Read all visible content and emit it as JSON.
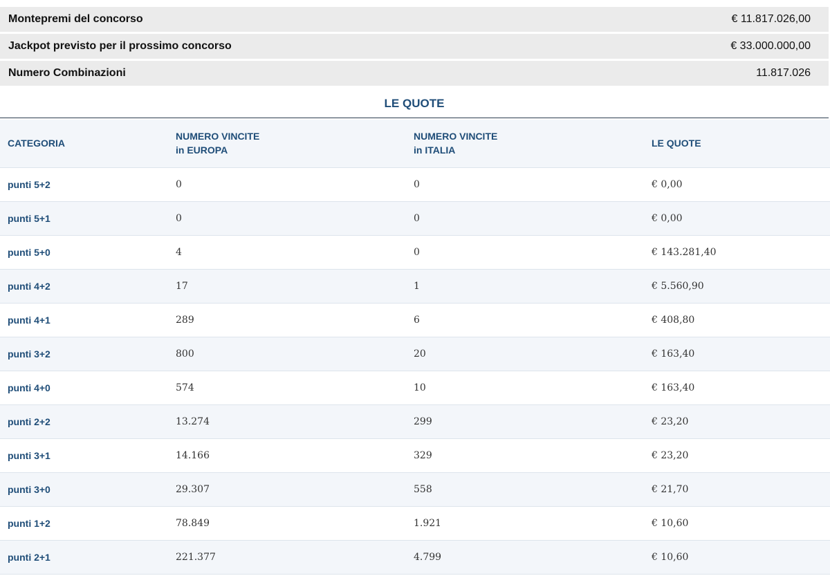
{
  "summary": [
    {
      "label": "Montepremi del concorso",
      "value": "€ 11.817.026,00"
    },
    {
      "label": "Jackpot previsto per il prossimo concorso",
      "value": "€ 33.000.000,00"
    },
    {
      "label": "Numero Combinazioni",
      "value": "11.817.026"
    }
  ],
  "section_title": "LE QUOTE",
  "table": {
    "headers": [
      {
        "line1": "CATEGORIA",
        "line2": ""
      },
      {
        "line1": "NUMERO VINCITE",
        "line2": "in EUROPA"
      },
      {
        "line1": "NUMERO VINCITE",
        "line2": "in ITALIA"
      },
      {
        "line1": "LE QUOTE",
        "line2": ""
      }
    ],
    "rows": [
      {
        "categoria": "punti 5+2",
        "europa": "0",
        "italia": "0",
        "quota": "€ 0,00"
      },
      {
        "categoria": "punti 5+1",
        "europa": "0",
        "italia": "0",
        "quota": "€ 0,00"
      },
      {
        "categoria": "punti 5+0",
        "europa": "4",
        "italia": "0",
        "quota": "€ 143.281,40"
      },
      {
        "categoria": "punti 4+2",
        "europa": "17",
        "italia": "1",
        "quota": "€ 5.560,90"
      },
      {
        "categoria": "punti 4+1",
        "europa": "289",
        "italia": "6",
        "quota": "€ 408,80"
      },
      {
        "categoria": "punti 3+2",
        "europa": "800",
        "italia": "20",
        "quota": "€ 163,40"
      },
      {
        "categoria": "punti 4+0",
        "europa": "574",
        "italia": "10",
        "quota": "€ 163,40"
      },
      {
        "categoria": "punti 2+2",
        "europa": "13.274",
        "italia": "299",
        "quota": "€ 23,20"
      },
      {
        "categoria": "punti 3+1",
        "europa": "14.166",
        "italia": "329",
        "quota": "€ 23,20"
      },
      {
        "categoria": "punti 3+0",
        "europa": "29.307",
        "italia": "558",
        "quota": "€ 21,70"
      },
      {
        "categoria": "punti 1+2",
        "europa": "78.849",
        "italia": "1.921",
        "quota": "€ 10,60"
      },
      {
        "categoria": "punti 2+1",
        "europa": "221.377",
        "italia": "4.799",
        "quota": "€ 10,60"
      }
    ]
  },
  "colors": {
    "accent": "#1f4d78",
    "summary_bg": "#ebebeb",
    "row_alt_bg": "#f3f6fa"
  }
}
